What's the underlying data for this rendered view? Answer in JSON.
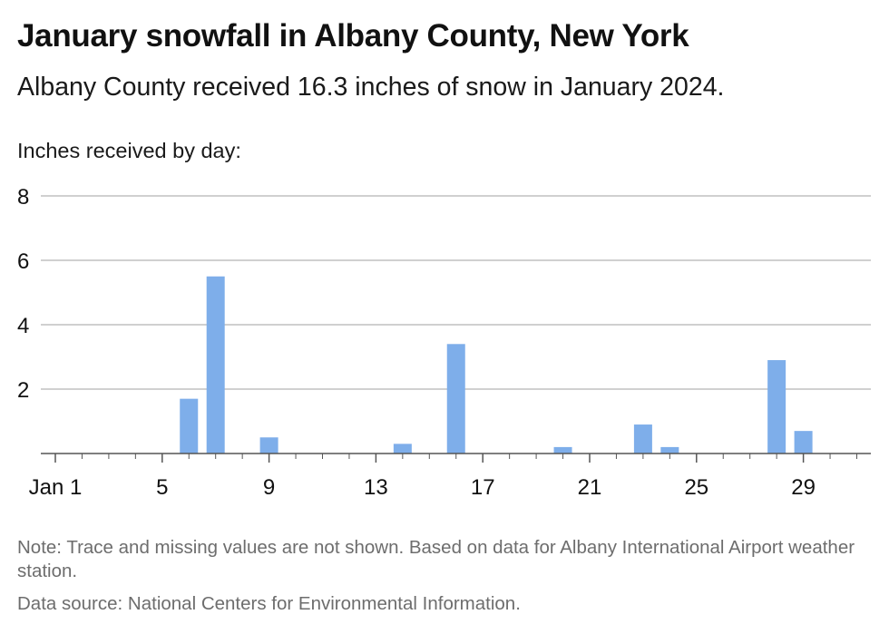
{
  "header": {
    "title": "January snowfall in Albany County, New York",
    "subtitle": "Albany County received 16.3 inches of snow in January 2024."
  },
  "chart_data": {
    "type": "bar",
    "title": "January snowfall in Albany County, New York",
    "subtitle": "Albany County received 16.3 inches of snow in January 2024.",
    "ylabel": "Inches received by day:",
    "xlabel": "",
    "x_tick_labels": [
      "Jan 1",
      "5",
      "9",
      "13",
      "17",
      "21",
      "25",
      "29"
    ],
    "x_tick_days": [
      1,
      5,
      9,
      13,
      17,
      21,
      25,
      29
    ],
    "y_ticks": [
      2,
      4,
      6,
      8
    ],
    "ylim": [
      0,
      8
    ],
    "xlim": [
      1,
      31
    ],
    "grid": true,
    "bar_color": "#7eaeea",
    "series": [
      {
        "day": [
          6,
          7,
          9,
          14,
          16,
          20,
          23,
          24,
          28,
          29
        ],
        "values": [
          1.7,
          5.5,
          0.5,
          0.3,
          3.4,
          0.2,
          0.9,
          0.2,
          2.9,
          0.7
        ]
      }
    ]
  },
  "footer": {
    "note": "Note: Trace and missing values are not shown. Based on data for Albany International Airport weather station.",
    "source": "Data source: National Centers for Environmental Information."
  }
}
